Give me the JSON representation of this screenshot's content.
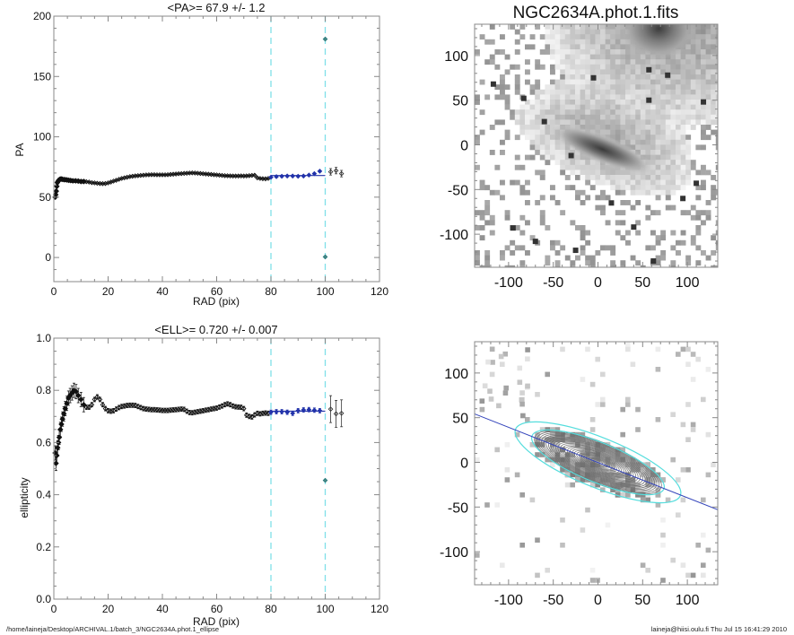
{
  "chart_data": [
    {
      "type": "scatter",
      "title": "<PA>=  67.9 +/-   1.2",
      "xlabel": "RAD (pix)",
      "ylabel": "PA",
      "xlim": [
        0,
        120
      ],
      "ylim": [
        -20,
        200
      ],
      "xticks": [
        "0",
        "20",
        "40",
        "60",
        "80",
        "100",
        "120"
      ],
      "yticks": [
        "0",
        "50",
        "100",
        "150",
        "200"
      ],
      "vlines": [
        80,
        100
      ],
      "fit": {
        "x": [
          80,
          100
        ],
        "y": 67.9
      },
      "series": [
        {
          "name": "profile",
          "color": "#111111",
          "x": [
            0.5,
            0.7,
            0.9,
            1.1,
            1.3,
            1.5,
            1.8,
            2.1,
            2.4,
            2.8,
            3.2,
            3.7,
            4.2,
            4.8,
            5.5,
            6.2,
            7,
            8,
            9,
            10,
            11,
            12,
            13,
            14,
            15,
            16,
            17,
            18,
            19,
            20,
            21,
            22,
            23,
            24,
            25,
            26,
            27,
            28,
            29,
            30,
            31,
            32,
            33,
            34,
            35,
            36,
            37,
            38,
            39,
            40,
            41,
            42,
            43,
            44,
            45,
            46,
            47,
            48,
            49,
            50,
            51,
            52,
            53,
            54,
            55,
            56,
            57,
            58,
            59,
            60,
            61,
            62,
            63,
            64,
            65,
            66,
            67,
            68,
            69,
            70,
            71,
            72,
            73,
            74,
            75,
            76,
            77,
            78,
            79
          ],
          "y": [
            50,
            52,
            55,
            59,
            62,
            63,
            64,
            64.5,
            65,
            65,
            64.8,
            64.5,
            64.5,
            64.3,
            64,
            63.8,
            63.5,
            63.5,
            63.3,
            63,
            63,
            62.8,
            62.5,
            62,
            61.8,
            61.5,
            61.3,
            61.2,
            61.3,
            61.8,
            62.5,
            63.3,
            64,
            64.8,
            65.5,
            66,
            66.5,
            67,
            67.3,
            67.6,
            67.8,
            68,
            68.2,
            68.4,
            68.5,
            68.6,
            68.6,
            68.5,
            68.5,
            68.5,
            68.5,
            68.6,
            68.8,
            69,
            69.2,
            69.4,
            69.5,
            69.7,
            69.8,
            70,
            70.1,
            70,
            69.8,
            69.6,
            69.4,
            69.2,
            69,
            68.8,
            68.6,
            68.4,
            68.2,
            68,
            67.8,
            67.7,
            67.6,
            67.5,
            67.5,
            67.5,
            67.6,
            67.5,
            67.6,
            67.8,
            68,
            68.2,
            66,
            65.5,
            65.3,
            65.2,
            65.5
          ]
        },
        {
          "name": "fit-range",
          "color": "#2233aa",
          "x": [
            80,
            82,
            84,
            86,
            88,
            90,
            92,
            94,
            96,
            98
          ],
          "y": [
            66.5,
            67,
            67.3,
            67.5,
            67.5,
            67.3,
            67.5,
            68.3,
            69.5,
            71.5
          ]
        },
        {
          "name": "outer",
          "color": "#333333",
          "x": [
            102,
            104,
            106
          ],
          "y": [
            71,
            72,
            69.5
          ]
        },
        {
          "name": "outliers",
          "color": "#2a7a7a",
          "x": [
            100,
            100
          ],
          "y": [
            181,
            0.5
          ]
        }
      ]
    },
    {
      "type": "scatter",
      "title": "<ELL>= 0.720 +/-  0.007",
      "xlabel": "RAD (pix)",
      "ylabel": "ellipticity",
      "xlim": [
        0,
        120
      ],
      "ylim": [
        0,
        1.0
      ],
      "xticks": [
        "0",
        "20",
        "40",
        "60",
        "80",
        "100",
        "120"
      ],
      "yticks": [
        "0.0",
        "0.2",
        "0.4",
        "0.6",
        "0.8",
        "1.0"
      ],
      "vlines": [
        80,
        100
      ],
      "fit": {
        "x": [
          80,
          100
        ],
        "y": 0.72
      },
      "series": [
        {
          "name": "profile",
          "color": "#111111",
          "x": [
            0.5,
            0.8,
            1.1,
            1.4,
            1.7,
            2,
            2.4,
            2.8,
            3.2,
            3.7,
            4.2,
            4.8,
            5.4,
            6,
            6.7,
            7.4,
            8.2,
            9,
            10,
            11,
            12,
            13,
            14,
            15,
            16,
            17,
            18,
            19,
            20,
            21,
            22,
            23,
            24,
            25,
            26,
            27,
            28,
            29,
            30,
            31,
            32,
            33,
            34,
            35,
            36,
            37,
            38,
            39,
            40,
            41,
            42,
            43,
            44,
            45,
            46,
            47,
            48,
            49,
            50,
            51,
            52,
            53,
            54,
            55,
            56,
            57,
            58,
            59,
            60,
            61,
            62,
            63,
            64,
            65,
            66,
            67,
            68,
            69,
            70,
            71,
            72,
            73,
            74,
            75,
            76,
            77,
            78,
            79
          ],
          "y": [
            0.56,
            0.52,
            0.55,
            0.58,
            0.6,
            0.62,
            0.65,
            0.67,
            0.69,
            0.71,
            0.73,
            0.75,
            0.77,
            0.78,
            0.79,
            0.8,
            0.795,
            0.78,
            0.765,
            0.745,
            0.735,
            0.735,
            0.745,
            0.765,
            0.775,
            0.765,
            0.745,
            0.73,
            0.722,
            0.72,
            0.722,
            0.728,
            0.734,
            0.738,
            0.74,
            0.742,
            0.743,
            0.743,
            0.742,
            0.738,
            0.734,
            0.73,
            0.728,
            0.727,
            0.726,
            0.726,
            0.725,
            0.724,
            0.723,
            0.723,
            0.723,
            0.724,
            0.725,
            0.726,
            0.727,
            0.728,
            0.727,
            0.72,
            0.715,
            0.714,
            0.716,
            0.718,
            0.72,
            0.722,
            0.724,
            0.726,
            0.728,
            0.73,
            0.732,
            0.736,
            0.74,
            0.745,
            0.748,
            0.745,
            0.74,
            0.737,
            0.736,
            0.735,
            0.73,
            0.705,
            0.7,
            0.698,
            0.706,
            0.712,
            0.71,
            0.712,
            0.713,
            0.712
          ]
        },
        {
          "name": "fit-range",
          "color": "#2233aa",
          "x": [
            80,
            82,
            84,
            86,
            88,
            90,
            92,
            94,
            96,
            98
          ],
          "y": [
            0.716,
            0.718,
            0.718,
            0.716,
            0.712,
            0.722,
            0.725,
            0.726,
            0.724,
            0.722
          ]
        },
        {
          "name": "outer",
          "color": "#333333",
          "x": [
            102,
            104,
            106
          ],
          "y": [
            0.728,
            0.71,
            0.712
          ]
        },
        {
          "name": "outliers",
          "color": "#2a7a7a",
          "x": [
            100
          ],
          "y": [
            0.455
          ]
        }
      ]
    },
    {
      "type": "heatmap",
      "title": "NGC2634A.phot.1.fits",
      "xlim": [
        -138,
        134
      ],
      "ylim": [
        -137,
        135
      ],
      "xticks": [
        "-100",
        "-50",
        "0",
        "50",
        "100"
      ],
      "yticks": [
        "-100",
        "-50",
        "0",
        "50",
        "100"
      ],
      "galaxy_center": [
        0,
        0
      ],
      "galaxy_pa_deg": 67.9,
      "galaxy_ellipticity": 0.72
    },
    {
      "type": "heatmap",
      "title": "",
      "xlim": [
        -138,
        134
      ],
      "ylim": [
        -137,
        135
      ],
      "xticks": [
        "-100",
        "-50",
        "0",
        "50",
        "100"
      ],
      "yticks": [
        "-100",
        "-50",
        "0",
        "50",
        "100"
      ],
      "major_axis_line": {
        "from": [
          -140,
          55
        ],
        "to": [
          134,
          -53
        ]
      },
      "fit_ellipses_sma": [
        80,
        100
      ],
      "ellipse_color": "#55dddd",
      "line_color": "#3344bb"
    }
  ],
  "colors": {
    "vline": "#7fe0e8",
    "fit": "#2233aa",
    "axis": "#888888"
  },
  "footer": {
    "left": "/home/laineja/Desktop/ARCHIVAL.1/batch_3/NGC2634A.phot.1_ellipse",
    "right": "laineja@hiisi.oulu.fi  Thu Jul 15 16:41:29 2010"
  }
}
